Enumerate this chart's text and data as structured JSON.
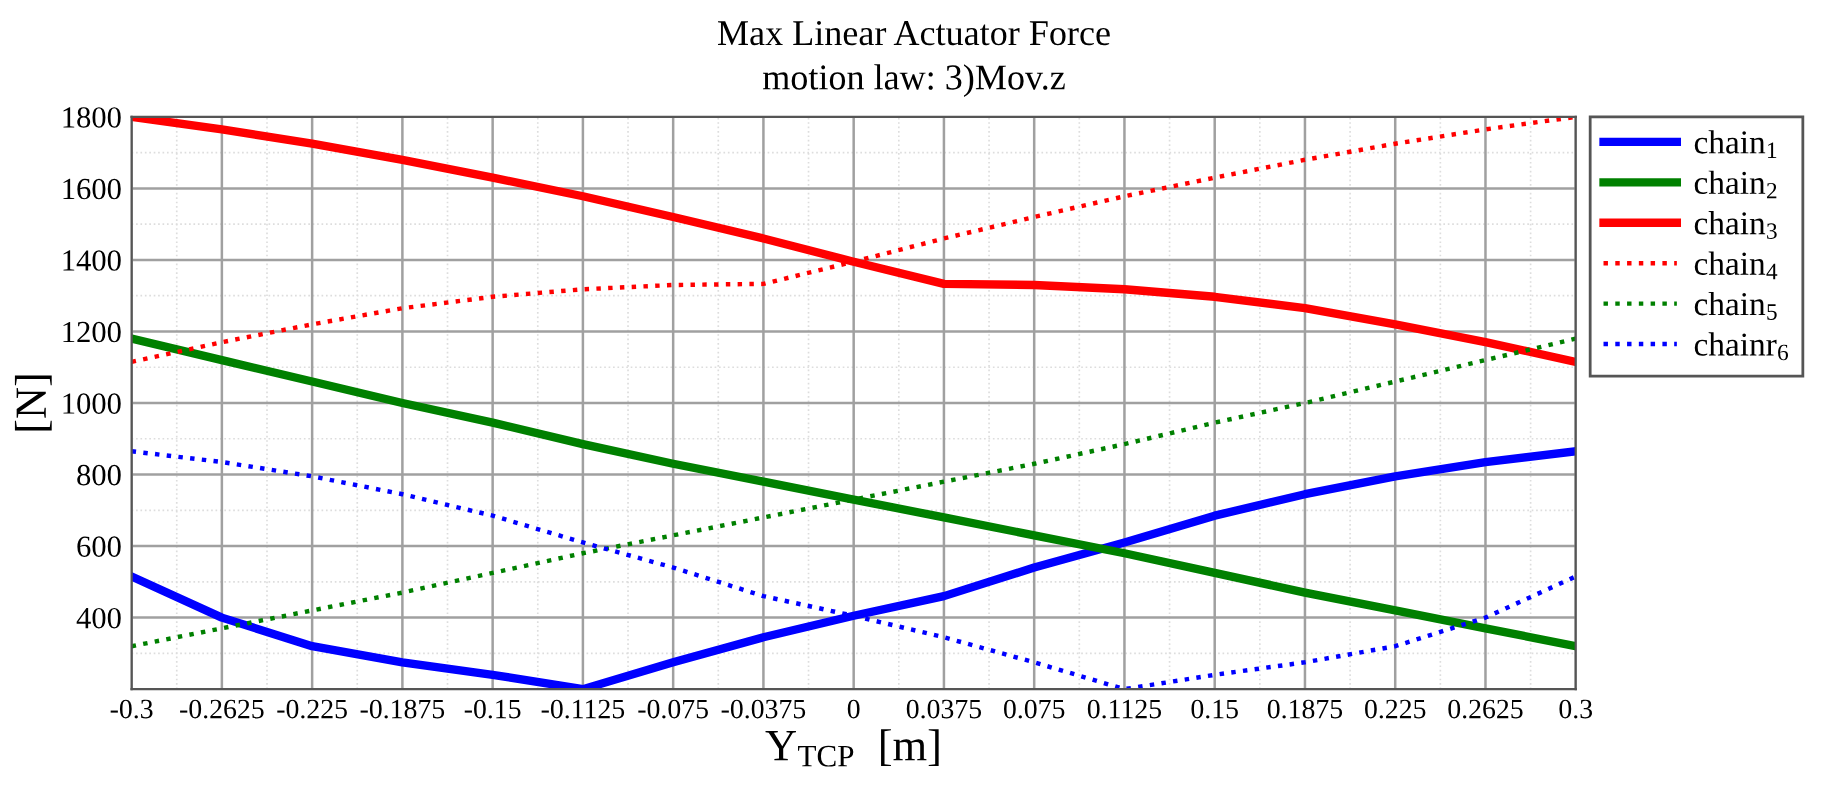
{
  "chart_data": {
    "type": "line",
    "title": "Max Linear Actuator Force",
    "subtitle": "motion law: 3)Mov.z",
    "xlabel": "Y$_{TCP}$  [m]",
    "ylabel": "[N]",
    "x": [
      -0.3,
      -0.2625,
      -0.225,
      -0.1875,
      -0.15,
      -0.1125,
      -0.075,
      -0.0375,
      0,
      0.0375,
      0.075,
      0.1125,
      0.15,
      0.1875,
      0.225,
      0.2625,
      0.3
    ],
    "series": [
      {
        "name": "chain$_{1}$",
        "color": "#0000ff",
        "line_style": "solid",
        "values": [
          515,
          400,
          320,
          275,
          240,
          200,
          275,
          345,
          405,
          460,
          540,
          610,
          685,
          745,
          795,
          835,
          865
        ]
      },
      {
        "name": "chain$_{2}$",
        "color": "#008000",
        "line_style": "solid",
        "values": [
          1180,
          1120,
          1060,
          1000,
          945,
          885,
          830,
          780,
          730,
          680,
          630,
          580,
          525,
          470,
          420,
          370,
          320
        ]
      },
      {
        "name": "chain$_{3}$",
        "color": "#ff0000",
        "line_style": "solid",
        "values": [
          1800,
          1765,
          1725,
          1680,
          1630,
          1578,
          1520,
          1460,
          1395,
          1333,
          1330,
          1318,
          1297,
          1265,
          1220,
          1170,
          1115
        ]
      },
      {
        "name": "chain$_{4}$",
        "color": "#ff0000",
        "line_style": "dotted",
        "values": [
          1115,
          1170,
          1220,
          1265,
          1297,
          1318,
          1330,
          1333,
          1395,
          1460,
          1520,
          1578,
          1630,
          1680,
          1725,
          1765,
          1800
        ]
      },
      {
        "name": "chain$_{5}$",
        "color": "#008000",
        "line_style": "dotted",
        "values": [
          320,
          370,
          420,
          470,
          525,
          580,
          630,
          680,
          730,
          780,
          830,
          885,
          945,
          1000,
          1060,
          1120,
          1180
        ]
      },
      {
        "name": "chainr$_{6}$",
        "color": "#0000ff",
        "line_style": "dotted",
        "values": [
          865,
          835,
          795,
          745,
          685,
          610,
          540,
          460,
          405,
          345,
          275,
          200,
          240,
          275,
          320,
          400,
          515
        ]
      }
    ],
    "xlim": [
      -0.3,
      0.3
    ],
    "ylim": [
      200,
      1800
    ],
    "xticks": [
      -0.3,
      -0.2625,
      -0.225,
      -0.1875,
      -0.15,
      -0.1125,
      -0.075,
      -0.0375,
      0,
      0.0375,
      0.075,
      0.1125,
      0.15,
      0.1875,
      0.225,
      0.2625,
      0.3
    ],
    "yticks": [
      400,
      600,
      800,
      1000,
      1200,
      1400,
      1600,
      1800
    ],
    "grid": true,
    "legend": "right",
    "marker": "none"
  }
}
